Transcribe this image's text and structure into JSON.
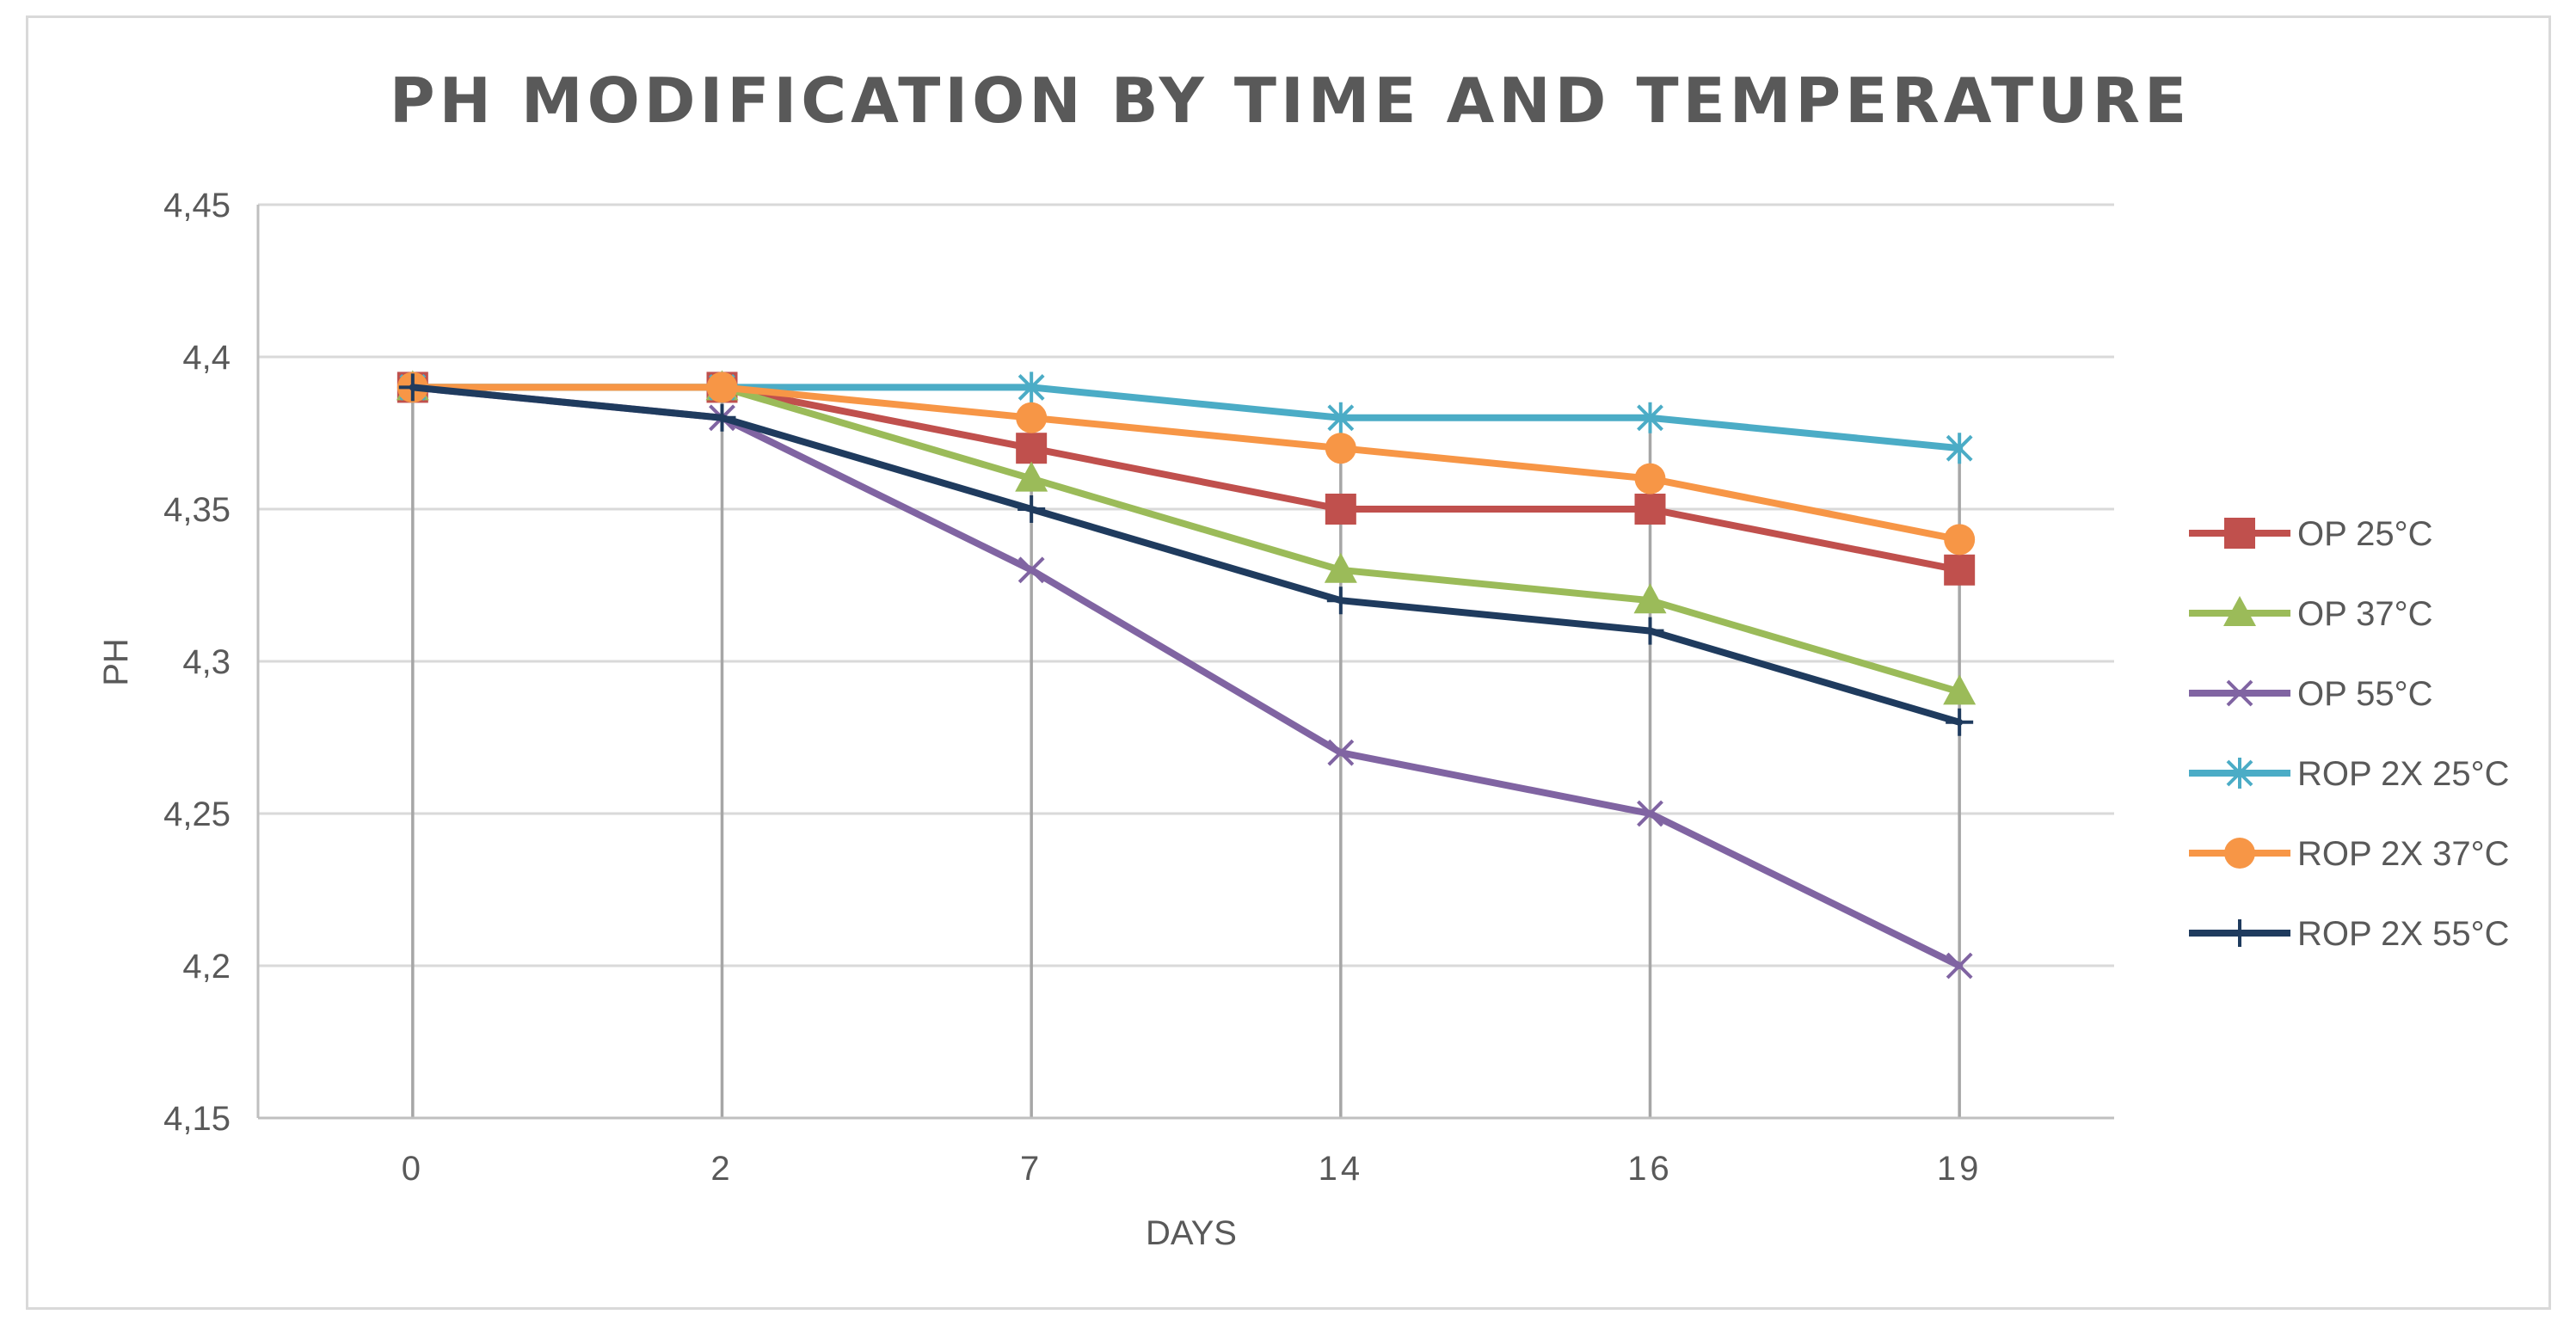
{
  "chart_data": {
    "type": "line",
    "title": "PH MODIFICATION  BY TIME AND TEMPERATURE",
    "xlabel": "DAYS",
    "ylabel": "PH",
    "categories": [
      "0",
      "2",
      "7",
      "14",
      "16",
      "19"
    ],
    "ylim": [
      4.15,
      4.45
    ],
    "yticks": [
      4.15,
      4.2,
      4.25,
      4.3,
      4.35,
      4.4,
      4.45
    ],
    "ytick_labels": [
      "4,15",
      "4,2",
      "4,25",
      "4,3",
      "4,35",
      "4,4",
      "4,45"
    ],
    "grid": true,
    "drop_lines": true,
    "legend_position": "right",
    "series": [
      {
        "name": "OP 25°C",
        "color": "#C0504D",
        "marker": "square",
        "values": [
          4.39,
          4.39,
          4.37,
          4.35,
          4.35,
          4.33
        ]
      },
      {
        "name": "OP 37°C",
        "color": "#9BBB59",
        "marker": "triangle",
        "values": [
          4.39,
          4.39,
          4.36,
          4.33,
          4.32,
          4.29
        ]
      },
      {
        "name": "OP 55°C",
        "color": "#8064A2",
        "marker": "x",
        "values": [
          4.39,
          4.38,
          4.33,
          4.27,
          4.25,
          4.2
        ]
      },
      {
        "name": "ROP 2X 25°C",
        "color": "#4BACC6",
        "marker": "star",
        "values": [
          4.39,
          4.39,
          4.39,
          4.38,
          4.38,
          4.37
        ]
      },
      {
        "name": "ROP 2X 37°C",
        "color": "#F79646",
        "marker": "circle",
        "values": [
          4.39,
          4.39,
          4.38,
          4.37,
          4.36,
          4.34
        ]
      },
      {
        "name": "ROP 2X 55°C",
        "color": "#1F3B5E",
        "marker": "plus",
        "values": [
          4.39,
          4.38,
          4.35,
          4.32,
          4.31,
          4.28
        ]
      }
    ]
  }
}
